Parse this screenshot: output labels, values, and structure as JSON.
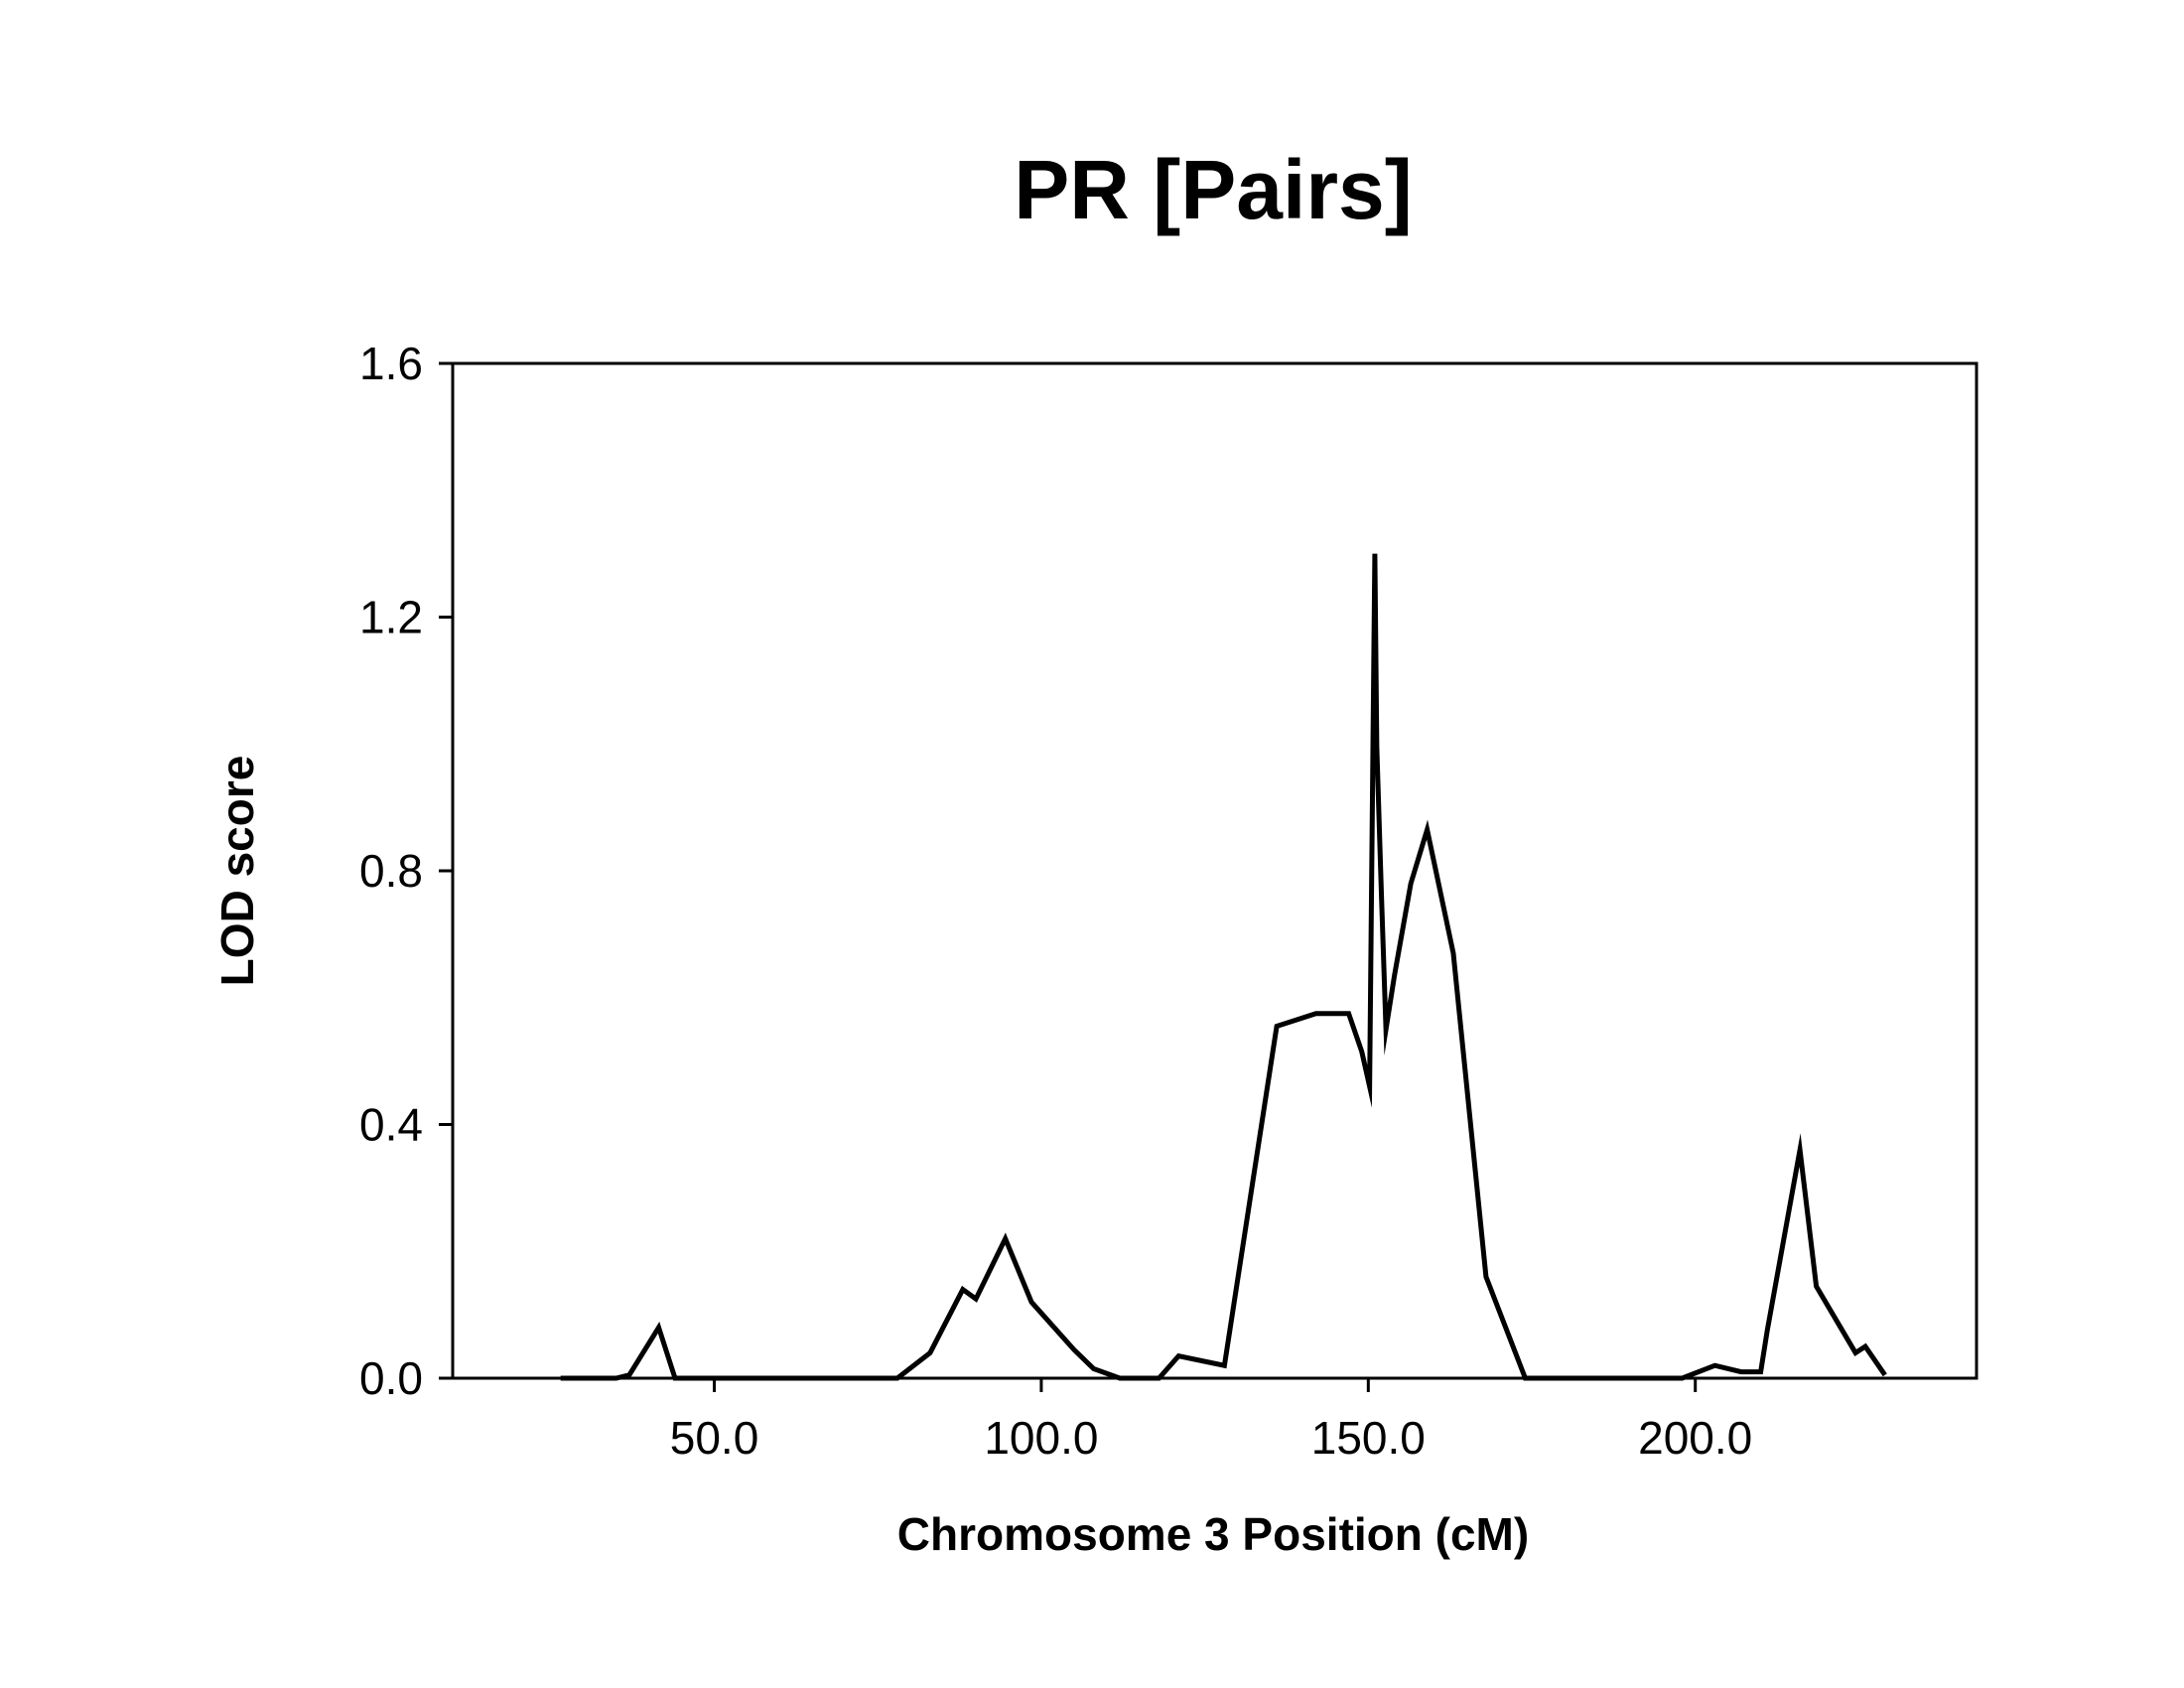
{
  "chart_data": {
    "type": "line",
    "title": "PR [Pairs]",
    "xlabel": "Chromosome 3 Position (cM)",
    "ylabel": "LOD score",
    "xlim": [
      10,
      243
    ],
    "ylim": [
      0,
      1.6
    ],
    "x_ticks": [
      50,
      100,
      150,
      200
    ],
    "x_tick_labels": [
      "50.0",
      "100.0",
      "150.0",
      "200.0"
    ],
    "y_ticks": [
      0,
      0.4,
      0.8,
      1.2,
      1.6
    ],
    "y_tick_labels": [
      "0.0",
      "0.4",
      "0.8",
      "1.2",
      "1.6"
    ],
    "grid": false,
    "line_color": "#000000",
    "series": [
      {
        "x": [
          26.5,
          35,
          37,
          41.5,
          44,
          50,
          60,
          70,
          78,
          83,
          88,
          90,
          94.5,
          98.5,
          105,
          108,
          112,
          115,
          118,
          121,
          128,
          136,
          142,
          147,
          149,
          150.2,
          151,
          151.3,
          152,
          152.7,
          154,
          156.5,
          159,
          163,
          168,
          174,
          180,
          190,
          198,
          203,
          207,
          210,
          211,
          216,
          218.5,
          224.5,
          226,
          229
        ],
        "y": [
          0.0,
          0.0,
          0.005,
          0.08,
          0.0,
          0.0,
          0.0,
          0.0,
          0.0,
          0.04,
          0.14,
          0.125,
          0.22,
          0.12,
          0.045,
          0.015,
          0.0,
          0.0,
          0.0,
          0.035,
          0.02,
          0.555,
          0.575,
          0.575,
          0.515,
          0.46,
          1.3,
          0.995,
          0.765,
          0.55,
          0.635,
          0.78,
          0.865,
          0.67,
          0.16,
          0.0,
          0.0,
          0.0,
          0.0,
          0.02,
          0.01,
          0.01,
          0.075,
          0.36,
          0.145,
          0.04,
          0.05,
          0.005
        ]
      }
    ]
  }
}
